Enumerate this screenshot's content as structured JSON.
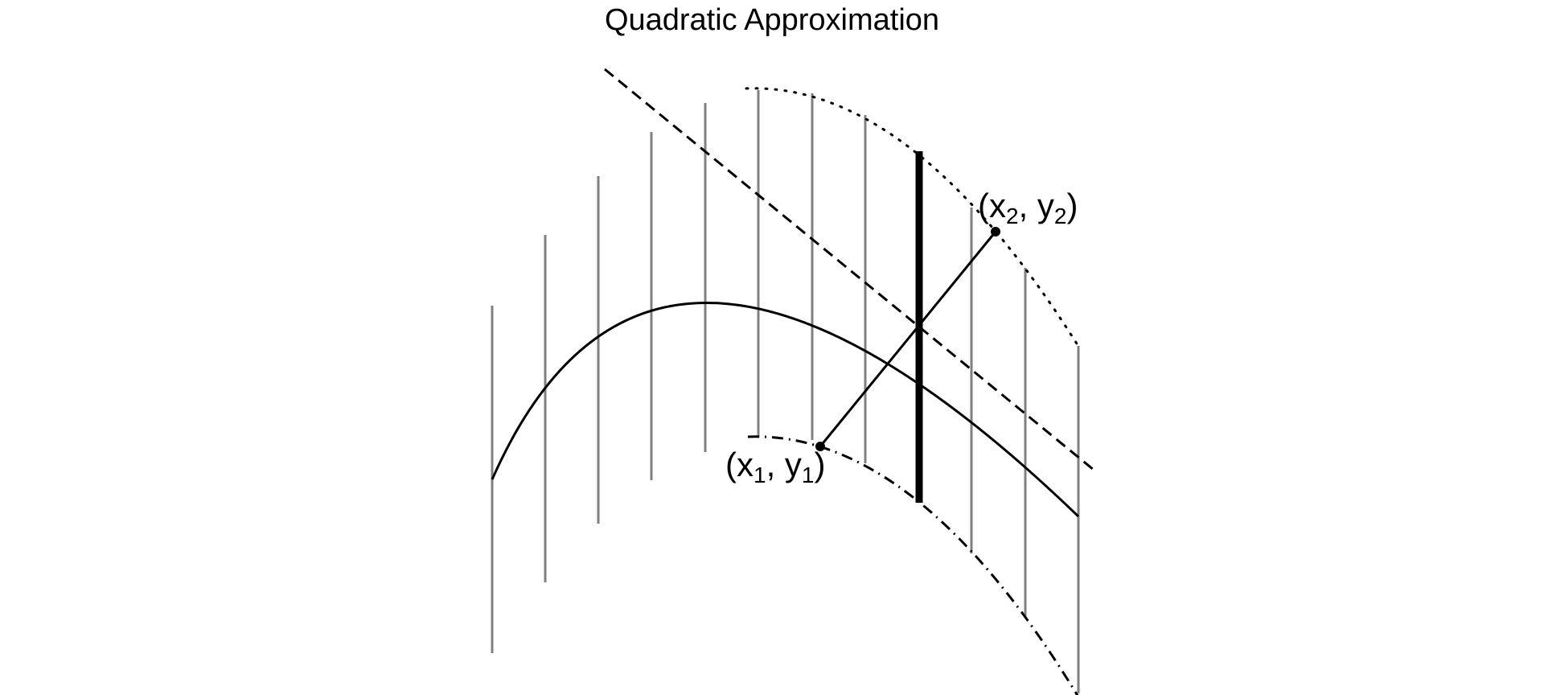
{
  "title": "Quadratic Approximation",
  "labels": {
    "point1": {
      "open": "(x",
      "sub_x": "1",
      "mid": ", y",
      "sub_y": "1",
      "close": ")"
    },
    "point2": {
      "open": "(x",
      "sub_x": "2",
      "mid": ", y",
      "sub_y": "2",
      "close": ")"
    }
  },
  "colors": {
    "curve": "#000000",
    "guide_lines": "#808080",
    "highlight_line": "#000000"
  }
}
